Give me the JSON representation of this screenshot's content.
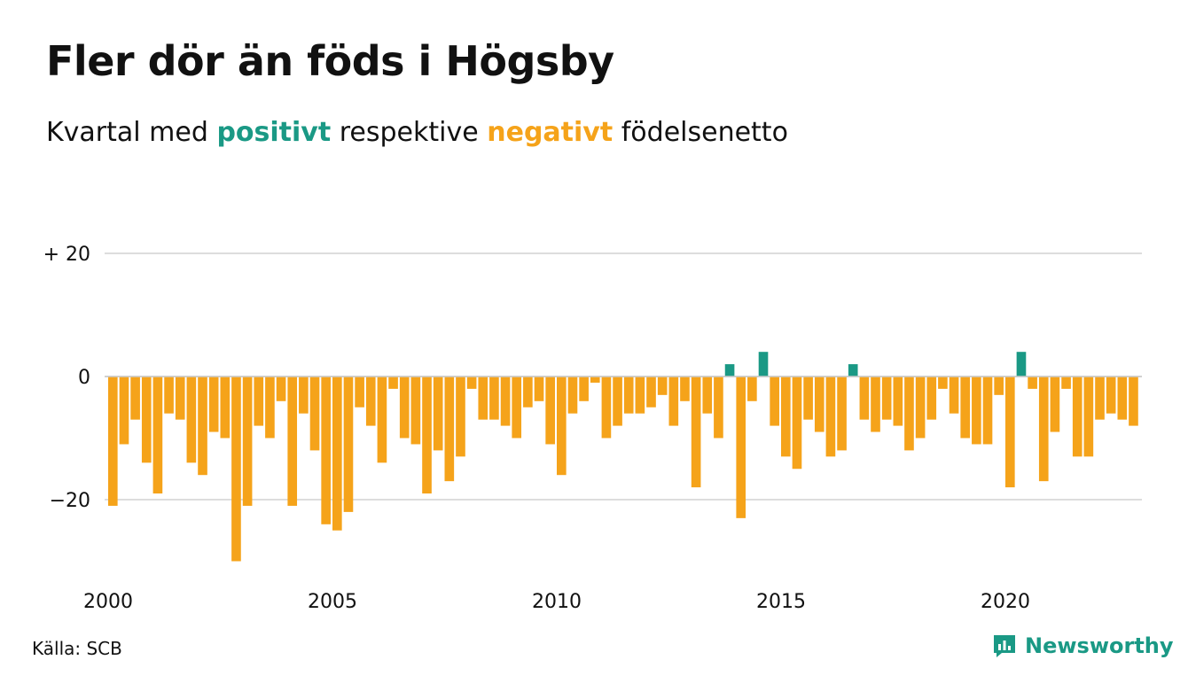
{
  "title": "Fler dör än föds i Högsby",
  "subtitle": {
    "prefix": "Kvartal med",
    "positive": "positivt",
    "middle": "respektive",
    "negative": "negativt",
    "suffix": "födelsenetto"
  },
  "source": "Källa: SCB",
  "brand": {
    "name": "Newsworthy",
    "icon": "newsworthy-logo-icon"
  },
  "colors": {
    "positive": "#1a9985",
    "negative": "#f5a31a",
    "grid": "#dddddd",
    "brand": "#1a9985"
  },
  "chart_data": {
    "type": "bar",
    "x_start": 2000.0,
    "x_step": 0.25,
    "values": [
      -21,
      -11,
      -7,
      -14,
      -19,
      -6,
      -7,
      -14,
      -16,
      -9,
      -10,
      -30,
      -21,
      -8,
      -10,
      -4,
      -21,
      -6,
      -12,
      -24,
      -25,
      -22,
      -5,
      -8,
      -14,
      -2,
      -10,
      -11,
      -19,
      -12,
      -17,
      -13,
      -2,
      -7,
      -7,
      -8,
      -10,
      -5,
      -4,
      -11,
      -16,
      -6,
      -4,
      -1,
      -10,
      -8,
      -6,
      -6,
      -5,
      -3,
      -8,
      -4,
      -18,
      -6,
      -10,
      2,
      -23,
      -4,
      4,
      -8,
      -13,
      -15,
      -7,
      -9,
      -13,
      -12,
      2,
      -7,
      -9,
      -7,
      -8,
      -12,
      -10,
      -7,
      -2,
      -6,
      -10,
      -11,
      -11,
      -3,
      -18,
      4,
      -2,
      -17,
      -9,
      -2,
      -13,
      -13,
      -7,
      -6,
      -7,
      -8
    ],
    "xlim": [
      2000,
      2023
    ],
    "ylim": [
      -30,
      20
    ],
    "y_ticks": [
      {
        "value": 20,
        "label": "+ 20"
      },
      {
        "value": 0,
        "label": "0"
      },
      {
        "value": -20,
        "label": "−20"
      }
    ],
    "x_ticks": [
      {
        "value": 2000,
        "label": "2000"
      },
      {
        "value": 2005,
        "label": "2005"
      },
      {
        "value": 2010,
        "label": "2010"
      },
      {
        "value": 2015,
        "label": "2015"
      },
      {
        "value": 2020,
        "label": "2020"
      }
    ],
    "grid": true,
    "legend": "none"
  }
}
